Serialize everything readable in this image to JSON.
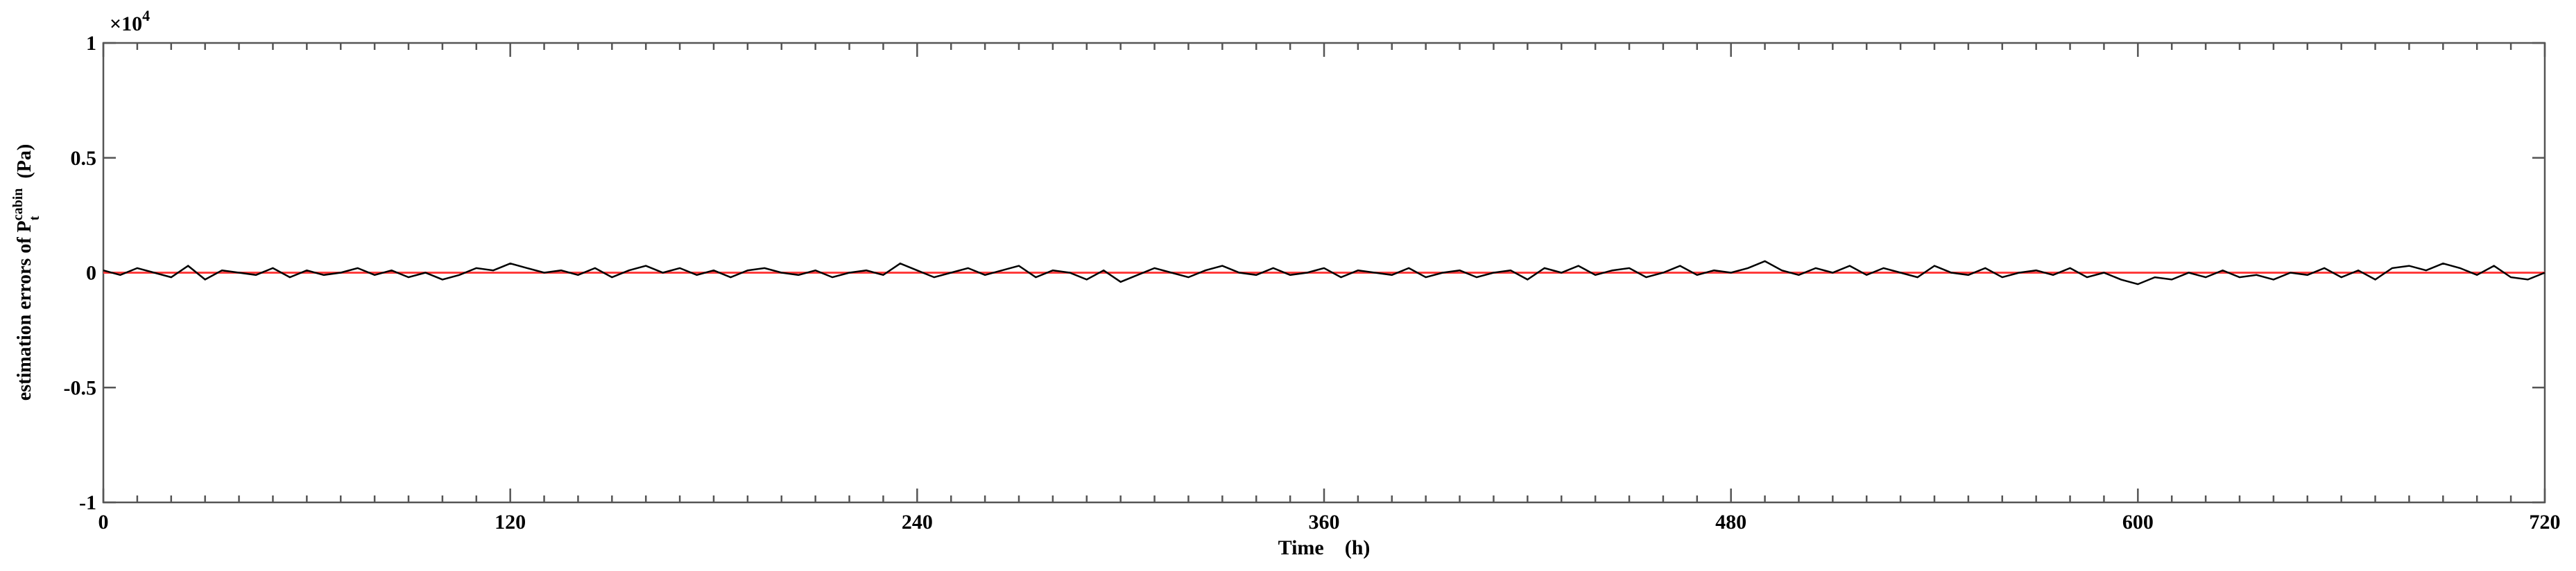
{
  "chart_data": {
    "type": "line",
    "xlabel": "Time    (h)",
    "ylabel": {
      "text": "estimation errors of ",
      "symbol": "P",
      "superscript": "cabin",
      "subscript": "t",
      "unit": "  (Pa)"
    },
    "y_scale_label": {
      "base": "×10",
      "exponent": "4"
    },
    "xlim": [
      0,
      720
    ],
    "xticks": [
      0,
      120,
      240,
      360,
      480,
      600,
      720
    ],
    "ylim": [
      -1,
      1
    ],
    "yticks": [
      -1,
      -0.5,
      0,
      0.5,
      1
    ],
    "series": [
      {
        "color": "#ff3b3b",
        "x": [
          0,
          720
        ],
        "values": [
          0,
          0
        ]
      },
      {
        "color": "#000000",
        "x": [
          0,
          5,
          10,
          15,
          20,
          25,
          30,
          35,
          40,
          45,
          50,
          55,
          60,
          65,
          70,
          75,
          80,
          85,
          90,
          95,
          100,
          105,
          110,
          115,
          120,
          125,
          130,
          135,
          140,
          145,
          150,
          155,
          160,
          165,
          170,
          175,
          180,
          185,
          190,
          195,
          200,
          205,
          210,
          215,
          220,
          225,
          230,
          235,
          240,
          245,
          250,
          255,
          260,
          265,
          270,
          275,
          280,
          285,
          290,
          295,
          300,
          305,
          310,
          315,
          320,
          325,
          330,
          335,
          340,
          345,
          350,
          355,
          360,
          365,
          370,
          375,
          380,
          385,
          390,
          395,
          400,
          405,
          410,
          415,
          420,
          425,
          430,
          435,
          440,
          445,
          450,
          455,
          460,
          465,
          470,
          475,
          480,
          485,
          490,
          495,
          500,
          505,
          510,
          515,
          520,
          525,
          530,
          535,
          540,
          545,
          550,
          555,
          560,
          565,
          570,
          575,
          580,
          585,
          590,
          595,
          600,
          605,
          610,
          615,
          620,
          625,
          630,
          635,
          640,
          645,
          650,
          655,
          660,
          665,
          670,
          675,
          680,
          685,
          690,
          695,
          700,
          705,
          710,
          715,
          720
        ],
        "values": [
          0.01,
          -0.01,
          0.02,
          0,
          -0.02,
          0.03,
          -0.03,
          0.01,
          0,
          -0.01,
          0.02,
          -0.02,
          0.01,
          -0.01,
          0,
          0.02,
          -0.01,
          0.01,
          -0.02,
          0,
          -0.03,
          -0.01,
          0.02,
          0.01,
          0.04,
          0.02,
          0,
          0.01,
          -0.01,
          0.02,
          -0.02,
          0.01,
          0.03,
          0,
          0.02,
          -0.01,
          0.01,
          -0.02,
          0.01,
          0.02,
          0,
          -0.01,
          0.01,
          -0.02,
          0,
          0.01,
          -0.01,
          0.04,
          0.01,
          -0.02,
          0,
          0.02,
          -0.01,
          0.01,
          0.03,
          -0.02,
          0.01,
          0,
          -0.03,
          0.01,
          -0.04,
          -0.01,
          0.02,
          0,
          -0.02,
          0.01,
          0.03,
          0,
          -0.01,
          0.02,
          -0.01,
          0,
          0.02,
          -0.02,
          0.01,
          0,
          -0.01,
          0.02,
          -0.02,
          0,
          0.01,
          -0.02,
          0,
          0.01,
          -0.03,
          0.02,
          0,
          0.03,
          -0.01,
          0.01,
          0.02,
          -0.02,
          0,
          0.03,
          -0.01,
          0.01,
          0,
          0.02,
          0.05,
          0.01,
          -0.01,
          0.02,
          0,
          0.03,
          -0.01,
          0.02,
          0,
          -0.02,
          0.03,
          0,
          -0.01,
          0.02,
          -0.02,
          0,
          0.01,
          -0.01,
          0.02,
          -0.02,
          0,
          -0.03,
          -0.05,
          -0.02,
          -0.03,
          0,
          -0.02,
          0.01,
          -0.02,
          -0.01,
          -0.03,
          0,
          -0.01,
          0.02,
          -0.02,
          0.01,
          -0.03,
          0.02,
          0.03,
          0.01,
          0.04,
          0.02,
          -0.01,
          0.03,
          -0.02,
          -0.03,
          0
        ]
      }
    ]
  }
}
